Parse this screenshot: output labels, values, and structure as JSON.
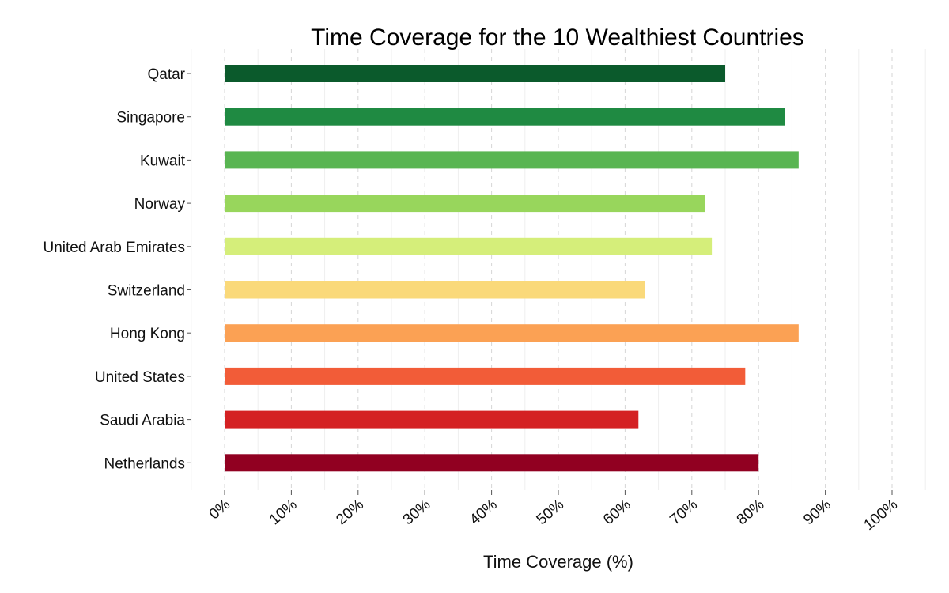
{
  "chart_data": {
    "type": "bar",
    "orientation": "horizontal",
    "title": "Time Coverage for the 10 Wealthiest Countries",
    "xlabel": "Time Coverage (%)",
    "ylabel": "",
    "xlim": [
      0,
      100
    ],
    "grid": true,
    "x_ticks": [
      "0%",
      "10%",
      "20%",
      "30%",
      "40%",
      "50%",
      "60%",
      "70%",
      "80%",
      "90%",
      "100%"
    ],
    "categories": [
      "Qatar",
      "Singapore",
      "Kuwait",
      "Norway",
      "United Arab Emirates",
      "Switzerland",
      "Hong Kong",
      "United States",
      "Saudi Arabia",
      "Netherlands"
    ],
    "values": [
      75,
      84,
      86,
      72,
      73,
      63,
      86,
      78,
      62,
      80
    ],
    "colors": [
      "#0b5a2c",
      "#1f8a42",
      "#59b552",
      "#98d65c",
      "#d5ee7a",
      "#fad97a",
      "#fba154",
      "#f25c38",
      "#d42123",
      "#910021"
    ]
  }
}
